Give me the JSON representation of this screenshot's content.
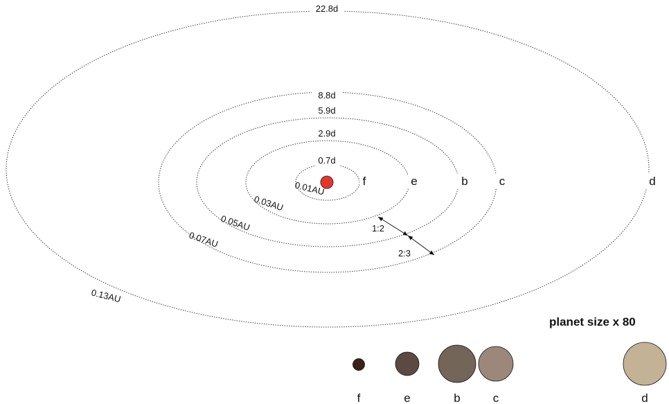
{
  "star": {
    "color": "#e8352a"
  },
  "orbits": [
    {
      "id": "f",
      "period": "0.7d",
      "distance": "0.01AU"
    },
    {
      "id": "e",
      "period": "2.9d",
      "distance": "0.03AU"
    },
    {
      "id": "b",
      "period": "5.9d",
      "distance": "0.05AU"
    },
    {
      "id": "c",
      "period": "8.8d",
      "distance": "0.07AU"
    },
    {
      "id": "d",
      "period": "22.8d",
      "distance": "0.13AU"
    }
  ],
  "resonances": [
    {
      "label": "1:2"
    },
    {
      "label": "2:3"
    }
  ],
  "legend": {
    "title": "planet size x 80",
    "planets": [
      {
        "name": "f",
        "color": "#3a2218"
      },
      {
        "name": "e",
        "color": "#5a4a42"
      },
      {
        "name": "b",
        "color": "#736557"
      },
      {
        "name": "c",
        "color": "#9c877a"
      },
      {
        "name": "d",
        "color": "#c4b296"
      }
    ]
  }
}
